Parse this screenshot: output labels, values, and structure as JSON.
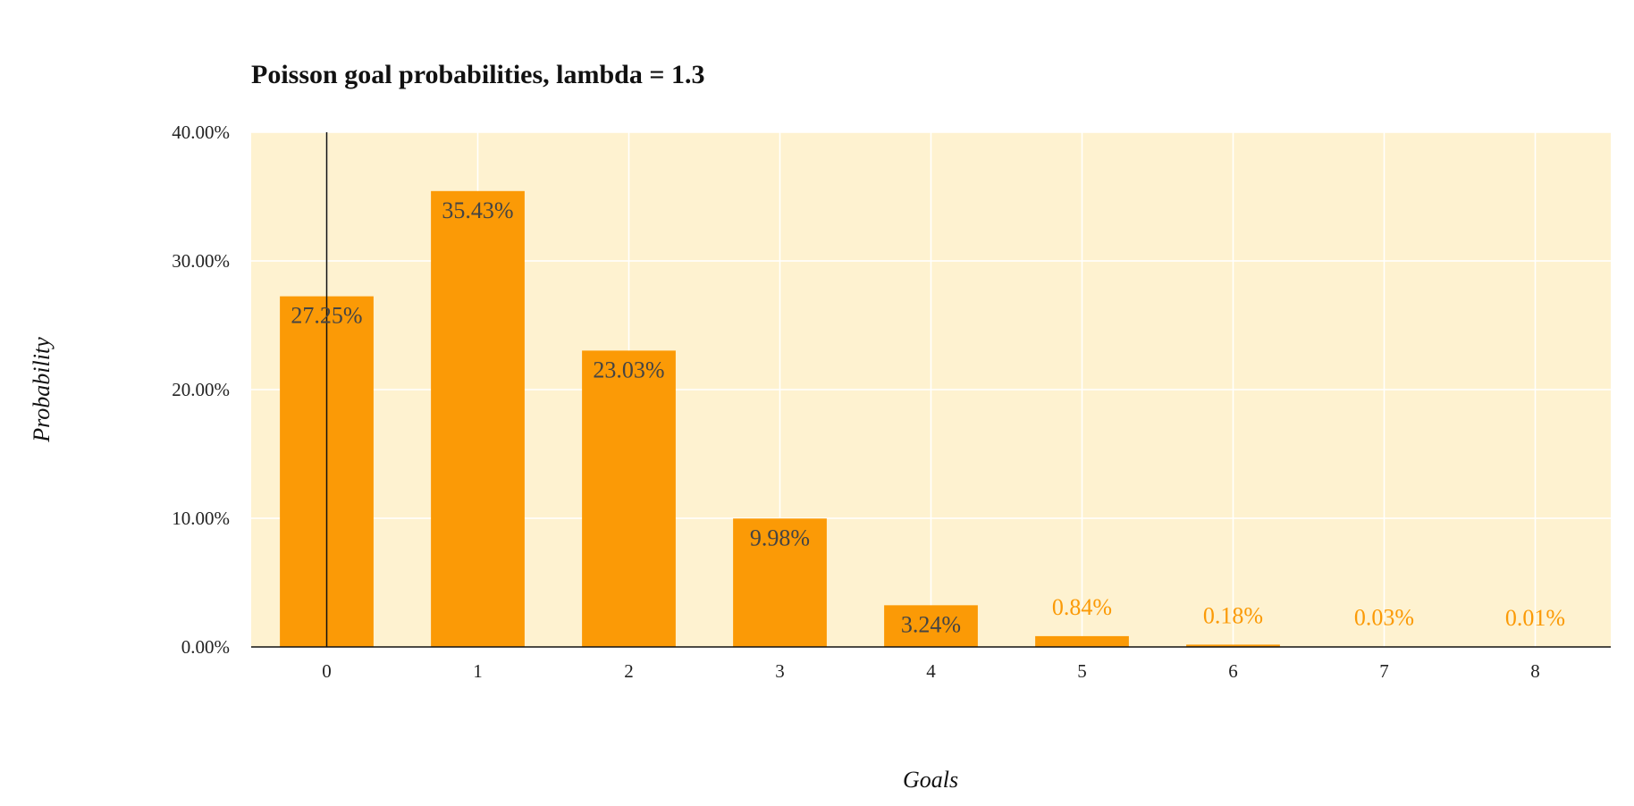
{
  "chart_data": {
    "type": "bar",
    "title": "Poisson goal probabilities, lambda = 1.3",
    "xlabel": "Goals",
    "ylabel": "Probability",
    "categories": [
      "0",
      "1",
      "2",
      "3",
      "4",
      "5",
      "6",
      "7",
      "8"
    ],
    "values": [
      0.2725,
      0.3543,
      0.2303,
      0.0998,
      0.0324,
      0.0084,
      0.0018,
      0.0003,
      0.0001
    ],
    "data_labels": [
      "27.25%",
      "35.43%",
      "23.03%",
      "9.98%",
      "3.24%",
      "0.84%",
      "0.18%",
      "0.03%",
      "0.01%"
    ],
    "ylim": [
      0,
      0.4
    ],
    "y_ticks": [
      0,
      0.1,
      0.2,
      0.3,
      0.4
    ],
    "y_tick_labels": [
      "0.00%",
      "10.00%",
      "20.00%",
      "30.00%",
      "40.00%"
    ],
    "reference_line_x": 0,
    "grid": true,
    "legend": "none",
    "colors": {
      "bar": "#fb9a06",
      "panel": "#fef2d0",
      "grid": "#ffffff",
      "label_inside": "#444444",
      "label_outside": "#fb9a06",
      "axis": "#111111"
    }
  }
}
